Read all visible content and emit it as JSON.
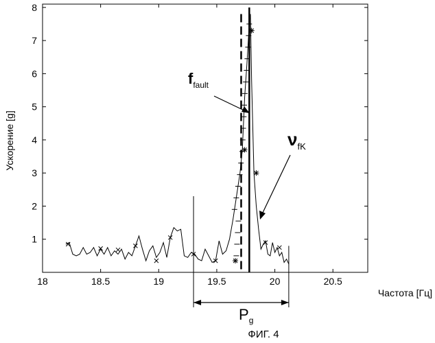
{
  "chart_data": {
    "type": "line",
    "xlabel": "Частота [Гц]",
    "ylabel": "Ускорение [g]",
    "xlim": [
      18,
      20.8
    ],
    "ylim": [
      0,
      8.1
    ],
    "xticks": [
      18,
      18.5,
      19,
      19.5,
      20,
      20.5
    ],
    "xtick_labels": [
      "18",
      "18.5",
      "19",
      "19.5",
      "20",
      "20.5"
    ],
    "yticks": [
      1,
      2,
      3,
      4,
      5,
      6,
      7,
      8
    ],
    "ytick_labels": [
      "1",
      "2",
      "3",
      "4",
      "5",
      "6",
      "7",
      "8"
    ],
    "grid": false,
    "series": [
      {
        "x": [
          18.2,
          18.23,
          18.26,
          18.29,
          18.32,
          18.35,
          18.38,
          18.41,
          18.44,
          18.47,
          18.5,
          18.53,
          18.56,
          18.59,
          18.62,
          18.65,
          18.68,
          18.71,
          18.74,
          18.77,
          18.8,
          18.83,
          18.86,
          18.89,
          18.92,
          18.95,
          18.98,
          19.01,
          19.04,
          19.07,
          19.1,
          19.13,
          19.16,
          19.19,
          19.22,
          19.25,
          19.28,
          19.31,
          19.34,
          19.37,
          19.4,
          19.43,
          19.46,
          19.49,
          19.52,
          19.55,
          19.58,
          19.61,
          19.64,
          19.67,
          19.7,
          19.72,
          19.74,
          19.76,
          19.78,
          19.79,
          19.8,
          19.82,
          19.84,
          19.86,
          19.88,
          19.9,
          19.92,
          19.94,
          19.96,
          19.98,
          20.0,
          20.02,
          20.04,
          20.06,
          20.08,
          20.1,
          20.12
        ],
        "values": [
          0.85,
          0.9,
          0.55,
          0.5,
          0.55,
          0.75,
          0.55,
          0.6,
          0.75,
          0.5,
          0.7,
          0.55,
          0.75,
          0.5,
          0.65,
          0.55,
          0.7,
          0.4,
          0.6,
          0.5,
          0.8,
          1.1,
          0.7,
          0.35,
          0.65,
          0.8,
          0.45,
          0.6,
          0.9,
          0.45,
          1.05,
          1.35,
          1.25,
          1.3,
          0.5,
          0.45,
          0.6,
          0.55,
          0.4,
          0.35,
          0.7,
          0.5,
          0.3,
          0.35,
          0.95,
          0.55,
          0.65,
          1.0,
          1.6,
          2.3,
          3.0,
          3.7,
          5.3,
          6.3,
          7.5,
          7.8,
          5.8,
          3.0,
          2.0,
          1.3,
          0.7,
          0.85,
          0.95,
          0.55,
          0.5,
          0.9,
          0.6,
          0.75,
          0.5,
          0.6,
          0.3,
          0.4,
          0.25
        ]
      }
    ],
    "markers": [
      {
        "x": 18.22,
        "y": 0.85,
        "symbol": "x"
      },
      {
        "x": 18.5,
        "y": 0.72,
        "symbol": "x"
      },
      {
        "x": 18.65,
        "y": 0.68,
        "symbol": "x"
      },
      {
        "x": 18.8,
        "y": 0.8,
        "symbol": "x"
      },
      {
        "x": 18.98,
        "y": 0.35,
        "symbol": "x"
      },
      {
        "x": 19.1,
        "y": 1.05,
        "symbol": "x"
      },
      {
        "x": 19.3,
        "y": 0.55,
        "symbol": "x"
      },
      {
        "x": 19.49,
        "y": 0.35,
        "symbol": "x"
      },
      {
        "x": 19.66,
        "y": 0.35,
        "symbol": "*"
      },
      {
        "x": 19.74,
        "y": 3.7,
        "symbol": "*"
      },
      {
        "x": 19.8,
        "y": 7.3,
        "symbol": "*"
      },
      {
        "x": 19.84,
        "y": 3.0,
        "symbol": "*"
      },
      {
        "x": 19.92,
        "y": 0.9,
        "symbol": "x"
      },
      {
        "x": 20.04,
        "y": 0.75,
        "symbol": "x"
      }
    ],
    "vertical_lines": [
      {
        "label": "f_fault",
        "x": 19.71,
        "style": "dashed"
      },
      {
        "label": "v_fK",
        "x": 19.78,
        "style": "solid"
      }
    ],
    "range": {
      "label": "P_g",
      "x_start": 19.3,
      "x_end": 20.12
    }
  },
  "annotations": {
    "f_fault": {
      "main": "f",
      "sub": "fault"
    },
    "v_fK": {
      "main": "ν",
      "sub": "fK"
    },
    "p_g": {
      "main": "P",
      "sub": "g"
    }
  },
  "caption": "ФИГ. 4"
}
